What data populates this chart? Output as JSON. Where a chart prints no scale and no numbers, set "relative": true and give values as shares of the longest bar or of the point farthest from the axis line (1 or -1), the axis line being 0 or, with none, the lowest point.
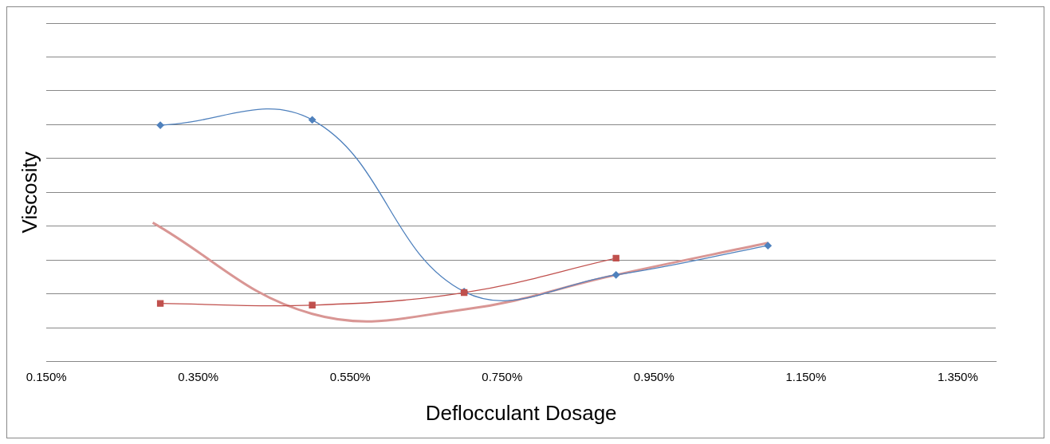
{
  "chart_data": {
    "type": "line",
    "xlabel": "Deflocculant Dosage",
    "ylabel": "Viscosity",
    "relative": true,
    "grid": "y",
    "legend": false,
    "xlim": [
      0.15,
      1.4
    ],
    "xticks": [
      {
        "value": 0.15,
        "label": "0.150%"
      },
      {
        "value": 0.35,
        "label": "0.350%"
      },
      {
        "value": 0.55,
        "label": "0.550%"
      },
      {
        "value": 0.75,
        "label": "0.750%"
      },
      {
        "value": 0.95,
        "label": "0.950%"
      },
      {
        "value": 1.15,
        "label": "1.150%"
      },
      {
        "value": 1.35,
        "label": "1.350%"
      }
    ],
    "series": [
      {
        "color": "#4f81bd",
        "marker": "diamond",
        "x": [
          0.3,
          0.5,
          0.7,
          0.9,
          1.1
        ],
        "values": [
          0.978,
          1,
          0.29,
          0.359,
          0.48
        ]
      },
      {
        "color": "#c0504d",
        "marker": "square",
        "x": [
          0.3,
          0.5,
          0.7,
          0.9
        ],
        "values": [
          0.241,
          0.234,
          0.286,
          0.428
        ]
      },
      {
        "color": "#d99694",
        "marker": "none",
        "x": [
          0.29,
          0.5,
          0.7,
          0.9,
          1.1
        ],
        "values": [
          0.575,
          0.198,
          0.216,
          0.359,
          0.491
        ]
      }
    ]
  }
}
